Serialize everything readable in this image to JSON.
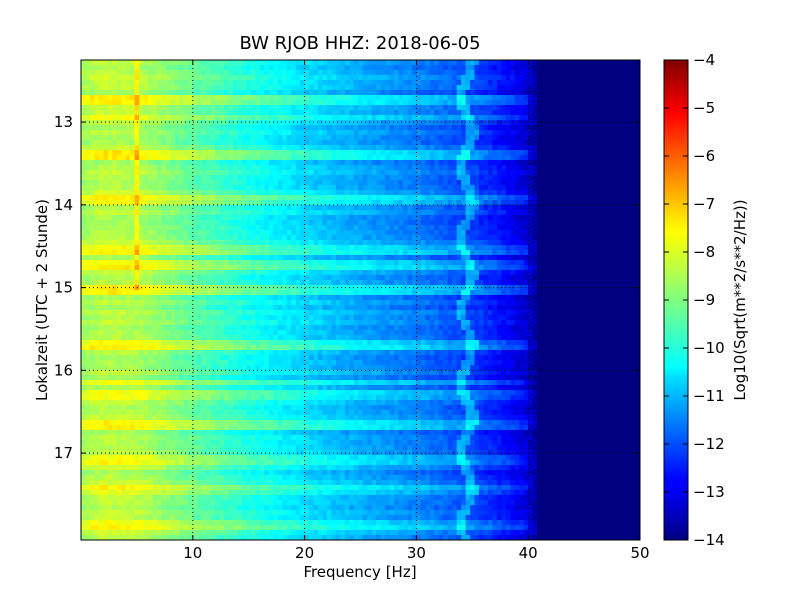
{
  "chart_data": {
    "type": "heatmap",
    "title": "BW RJOB HHZ: 2018-06-05",
    "xlabel": "Frequency [Hz]",
    "ylabel": "Lokalzeit (UTC + 2 Stunde)",
    "xlim": [
      0,
      50
    ],
    "ylim_hours": [
      12.25,
      18.05
    ],
    "y_inverted": true,
    "grid": true,
    "x_ticks": [
      10,
      20,
      30,
      40,
      50
    ],
    "y_ticks": [
      13,
      14,
      15,
      16,
      17
    ],
    "colormap": "jet",
    "colorbar": {
      "label": "Log10(Sqrt(m**2/s**2/Hz))",
      "range": [
        -14,
        -4
      ],
      "ticks": [
        -4,
        -5,
        -6,
        -7,
        -8,
        -9,
        -10,
        -11,
        -12,
        -13,
        -14
      ]
    },
    "spectral_profile": {
      "frequency_hz": [
        0,
        2,
        5,
        10,
        15,
        20,
        25,
        30,
        35,
        38,
        40,
        41,
        42,
        50
      ],
      "level": [
        -8.7,
        -8.4,
        -8.5,
        -9.3,
        -10.0,
        -10.6,
        -11.1,
        -11.5,
        -12.1,
        -12.7,
        -13.2,
        -14,
        -14,
        -14
      ]
    },
    "persistent_line_hz": 5,
    "wandering_line_hz": 34.5,
    "noisy_periods_hours": [
      12.75,
      12.95,
      13.4,
      13.95,
      14.55,
      14.75,
      15.05,
      15.7,
      16.15,
      16.3,
      16.65,
      17.1,
      17.45,
      17.85
    ]
  }
}
